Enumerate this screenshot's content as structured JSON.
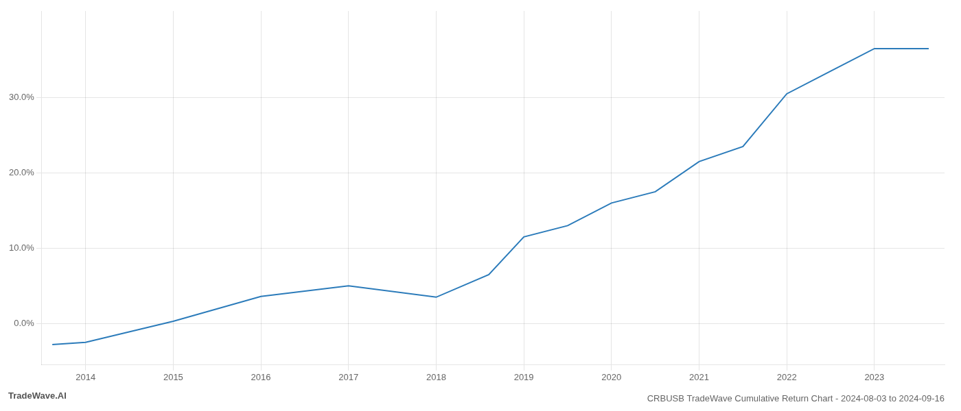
{
  "chart_data": {
    "type": "line",
    "title": "CRBUSB TradeWave Cumulative Return Chart - 2024-08-03 to 2024-09-16",
    "annotations": [
      "TradeWave.AI"
    ],
    "x": [
      2013.62,
      2014.0,
      2015.0,
      2016.0,
      2017.0,
      2018.0,
      2018.6,
      2019.0,
      2019.5,
      2020.0,
      2020.5,
      2021.0,
      2021.5,
      2022.0,
      2022.5,
      2023.0,
      2023.62
    ],
    "values": [
      -0.028,
      -0.025,
      0.003,
      0.036,
      0.05,
      0.035,
      0.065,
      0.115,
      0.13,
      0.16,
      0.175,
      0.215,
      0.235,
      0.305,
      0.335,
      0.365,
      0.365
    ],
    "color": "#2b7bba",
    "xlim": [
      2013.5,
      2023.8
    ],
    "xticks": [
      2014,
      2015,
      2016,
      2017,
      2018,
      2019,
      2020,
      2021,
      2022,
      2023
    ],
    "ylim": [
      -0.055,
      0.415
    ],
    "yticks": [
      {
        "value": 0.0,
        "label": "0.0%"
      },
      {
        "value": 0.1,
        "label": "10.0%"
      },
      {
        "value": 0.2,
        "label": "20.0%"
      },
      {
        "value": 0.3,
        "label": "30.0%"
      }
    ],
    "grid": true
  }
}
